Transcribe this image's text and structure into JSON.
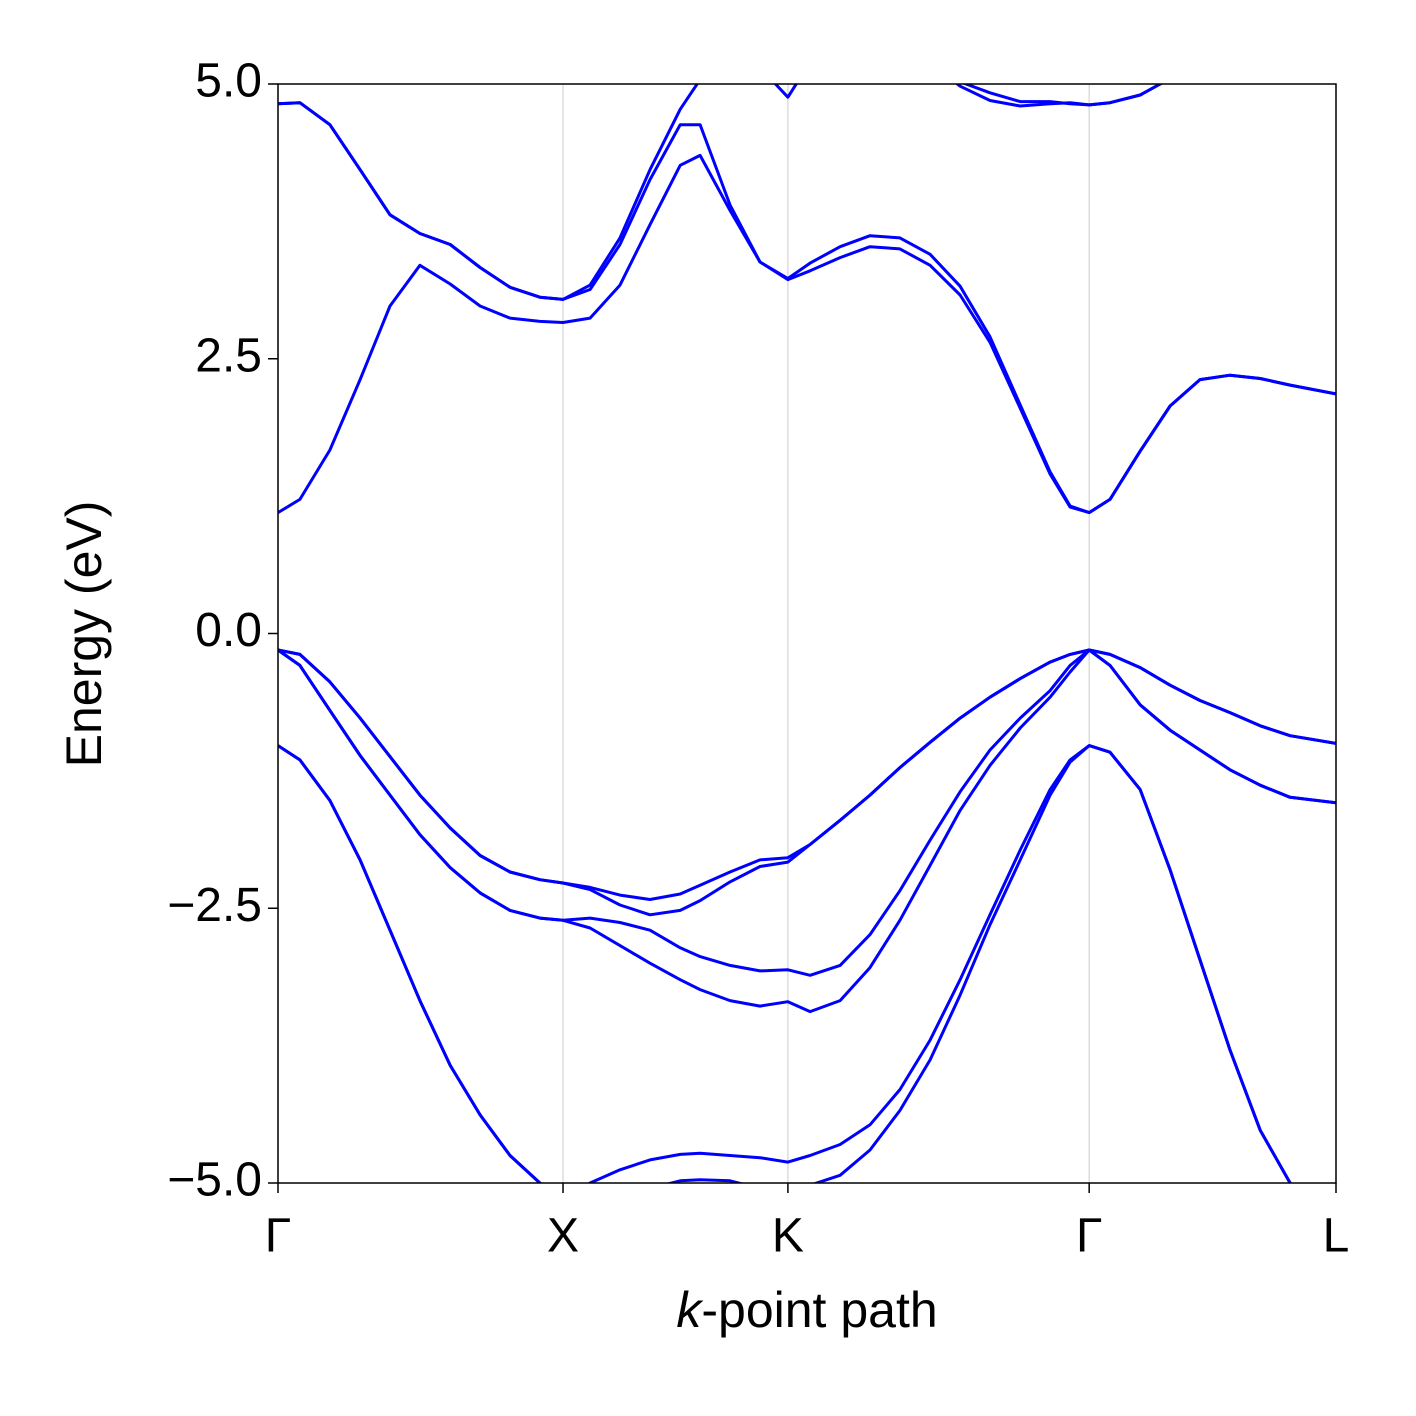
{
  "chart_data": {
    "type": "line",
    "xlabel": "k-point path",
    "ylabel": "Energy (eV)",
    "color": "#0000ff",
    "grid": true,
    "xlim": [
      0,
      3.712
    ],
    "xticks": [
      {
        "value": 0,
        "label": "Γ"
      },
      {
        "value": 1,
        "label": "X"
      },
      {
        "value": 1.789,
        "label": "K"
      },
      {
        "value": 2.846,
        "label": "Γ"
      },
      {
        "value": 3.712,
        "label": "L"
      }
    ],
    "ylim": [
      -5,
      5
    ],
    "yticks": [
      {
        "value": -5,
        "label": "−5.0"
      },
      {
        "value": -2.5,
        "label": "−2.5"
      },
      {
        "value": 0,
        "label": "0.0"
      },
      {
        "value": 2.5,
        "label": "2.5"
      },
      {
        "value": 5,
        "label": "5.0"
      }
    ],
    "x": [
      0,
      0.077,
      0.182,
      0.288,
      0.393,
      0.498,
      0.604,
      0.709,
      0.814,
      0.919,
      1,
      1.095,
      1.2,
      1.305,
      1.411,
      1.481,
      1.586,
      1.691,
      1.789,
      1.867,
      1.972,
      2.077,
      2.182,
      2.288,
      2.393,
      2.498,
      2.604,
      2.709,
      2.779,
      2.846,
      2.919,
      3.025,
      3.13,
      3.235,
      3.34,
      3.446,
      3.551,
      3.712
    ],
    "series": [
      {
        "values": [
          -1.02,
          -1.15,
          -1.52,
          -2.06,
          -2.7,
          -3.34,
          -3.93,
          -4.38,
          -4.75,
          -5.0,
          -5.15,
          -5.15,
          -5.1,
          -5.05,
          -4.98,
          -4.97,
          -4.98,
          -5.05,
          -5.1,
          -5.02,
          -4.93,
          -4.7,
          -4.34,
          -3.88,
          -3.29,
          -2.65,
          -2.06,
          -1.47,
          -1.17,
          -1.02,
          -1.08,
          -1.42,
          -2.15,
          -2.97,
          -3.79,
          -4.52,
          -5.0,
          -5.45
        ]
      },
      {
        "values": [
          -1.02,
          -1.15,
          -1.52,
          -2.06,
          -2.7,
          -3.34,
          -3.93,
          -4.38,
          -4.75,
          -5.0,
          -5.15,
          -5.0,
          -4.88,
          -4.79,
          -4.74,
          -4.73,
          -4.75,
          -4.77,
          -4.81,
          -4.75,
          -4.65,
          -4.47,
          -4.15,
          -3.7,
          -3.15,
          -2.56,
          -1.97,
          -1.42,
          -1.15,
          -1.02,
          -1.08,
          -1.42,
          -2.15,
          -2.97,
          -3.79,
          -4.52,
          -5.0,
          -5.45
        ]
      },
      {
        "values": [
          -0.15,
          -0.19,
          -0.44,
          -0.77,
          -1.12,
          -1.47,
          -1.77,
          -2.02,
          -2.17,
          -2.24,
          -2.27,
          -2.31,
          -2.38,
          -2.42,
          -2.37,
          -2.29,
          -2.17,
          -2.06,
          -2.04,
          -1.92,
          -1.7,
          -1.47,
          -1.22,
          -0.99,
          -0.77,
          -0.58,
          -0.41,
          -0.26,
          -0.19,
          -0.15,
          -0.19,
          -0.31,
          -0.47,
          -0.61,
          -0.72,
          -0.84,
          -0.93,
          -1.0
        ]
      },
      {
        "values": [
          -0.15,
          -0.19,
          -0.44,
          -0.77,
          -1.12,
          -1.47,
          -1.77,
          -2.02,
          -2.17,
          -2.24,
          -2.27,
          -2.33,
          -2.47,
          -2.56,
          -2.52,
          -2.43,
          -2.26,
          -2.12,
          -2.08,
          -1.92,
          -1.7,
          -1.47,
          -1.22,
          -0.99,
          -0.77,
          -0.58,
          -0.41,
          -0.26,
          -0.19,
          -0.15,
          -0.19,
          -0.31,
          -0.47,
          -0.61,
          -0.72,
          -0.84,
          -0.93,
          -1.0
        ]
      },
      {
        "values": [
          -0.15,
          -0.29,
          -0.7,
          -1.11,
          -1.47,
          -1.83,
          -2.13,
          -2.36,
          -2.52,
          -2.59,
          -2.61,
          -2.59,
          -2.63,
          -2.7,
          -2.86,
          -2.94,
          -3.02,
          -3.07,
          -3.06,
          -3.11,
          -3.02,
          -2.74,
          -2.34,
          -1.88,
          -1.44,
          -1.06,
          -0.77,
          -0.52,
          -0.29,
          -0.15,
          -0.29,
          -0.65,
          -0.88,
          -1.06,
          -1.24,
          -1.38,
          -1.49,
          -1.54
        ]
      },
      {
        "values": [
          -0.15,
          -0.29,
          -0.7,
          -1.11,
          -1.47,
          -1.83,
          -2.13,
          -2.36,
          -2.52,
          -2.59,
          -2.61,
          -2.68,
          -2.84,
          -3.0,
          -3.15,
          -3.24,
          -3.34,
          -3.39,
          -3.35,
          -3.44,
          -3.34,
          -3.04,
          -2.61,
          -2.11,
          -1.61,
          -1.2,
          -0.86,
          -0.58,
          -0.35,
          -0.15,
          -0.29,
          -0.65,
          -0.88,
          -1.06,
          -1.24,
          -1.38,
          -1.49,
          -1.54
        ]
      },
      {
        "values": [
          1.1,
          1.22,
          1.67,
          2.31,
          2.98,
          3.35,
          3.18,
          2.98,
          2.87,
          2.84,
          2.83,
          2.87,
          3.17,
          3.72,
          4.26,
          4.35,
          3.85,
          3.38,
          3.22,
          3.3,
          3.42,
          3.52,
          3.5,
          3.35,
          3.08,
          2.65,
          2.05,
          1.45,
          1.15,
          1.1,
          1.22,
          1.66,
          2.07,
          2.31,
          2.35,
          2.32,
          2.26,
          2.18
        ]
      },
      {
        "values": [
          4.82,
          4.83,
          4.63,
          4.22,
          3.81,
          3.64,
          3.54,
          3.33,
          3.15,
          3.06,
          3.04,
          3.13,
          3.54,
          4.13,
          4.63,
          4.63,
          3.9,
          3.38,
          3.23,
          3.37,
          3.52,
          3.62,
          3.6,
          3.45,
          3.16,
          2.7,
          2.08,
          1.47,
          1.16,
          1.1,
          1.22,
          1.66,
          2.07,
          2.31,
          2.35,
          2.32,
          2.26,
          2.18
        ]
      },
      {
        "values": [
          4.82,
          4.83,
          4.63,
          4.22,
          3.81,
          3.64,
          3.54,
          3.33,
          3.15,
          3.06,
          3.04,
          3.17,
          3.6,
          4.22,
          4.77,
          5.04,
          5.4,
          5.15,
          4.88,
          5.2,
          null,
          null,
          null,
          null,
          null,
          null,
          null,
          null,
          null,
          null,
          null,
          null,
          null,
          null,
          null,
          null,
          null,
          null
        ]
      },
      {
        "values": [
          null,
          null,
          null,
          null,
          null,
          null,
          null,
          null,
          null,
          null,
          null,
          null,
          null,
          null,
          null,
          null,
          null,
          null,
          null,
          null,
          null,
          null,
          null,
          5.2,
          4.98,
          4.85,
          4.8,
          4.82,
          4.83,
          4.81,
          4.83,
          4.9,
          5.05,
          5.2,
          null,
          null,
          null,
          null
        ]
      },
      {
        "values": [
          null,
          null,
          null,
          null,
          null,
          null,
          null,
          null,
          null,
          null,
          null,
          null,
          null,
          null,
          null,
          null,
          null,
          null,
          null,
          null,
          null,
          null,
          null,
          5.2,
          5.02,
          4.92,
          4.84,
          4.84,
          4.82,
          4.81,
          4.83,
          4.9,
          5.05,
          5.2,
          null,
          null,
          null,
          null
        ]
      }
    ]
  }
}
